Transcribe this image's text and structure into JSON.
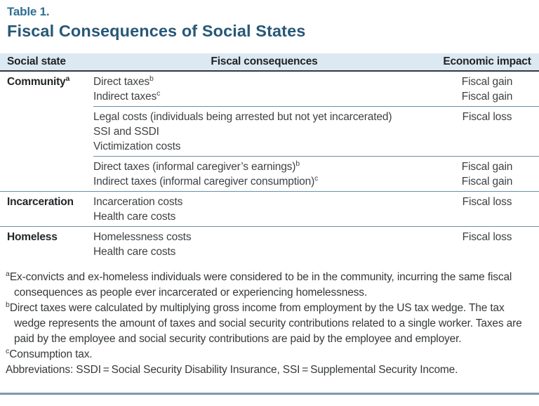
{
  "figure": {
    "eyebrow": "Table 1.",
    "title": "Fiscal Consequences of Social States"
  },
  "table": {
    "headers": {
      "state": "Social state",
      "consequences": "Fiscal consequences",
      "impact": "Economic impact"
    },
    "sections": [
      {
        "state": "Community",
        "state_sup": "a",
        "groups": [
          {
            "items": [
              {
                "text": "Direct taxes",
                "sup": "b",
                "impact": "Fiscal gain"
              },
              {
                "text": "Indirect taxes",
                "sup": "c",
                "impact": "Fiscal gain"
              }
            ]
          },
          {
            "items": [
              {
                "text": "Legal costs (individuals being arrested but not yet incarcerated)",
                "impact": "Fiscal loss"
              },
              {
                "text": "SSI and SSDI"
              },
              {
                "text": "Victimization costs"
              }
            ]
          },
          {
            "items": [
              {
                "text": "Direct taxes (informal caregiver’s earnings)",
                "sup": "b",
                "impact": "Fiscal gain"
              },
              {
                "text": "Indirect taxes (informal caregiver consumption)",
                "sup": "c",
                "impact": "Fiscal gain"
              }
            ]
          }
        ]
      },
      {
        "state": "Incarceration",
        "groups": [
          {
            "items": [
              {
                "text": "Incarceration costs",
                "impact": "Fiscal loss"
              },
              {
                "text": "Health care costs"
              }
            ]
          }
        ]
      },
      {
        "state": "Homeless",
        "groups": [
          {
            "items": [
              {
                "text": "Homelessness costs",
                "impact": "Fiscal loss"
              },
              {
                "text": "Health care costs"
              }
            ]
          }
        ]
      }
    ]
  },
  "footnotes": [
    {
      "marker": "a",
      "text": "Ex-convicts and ex-homeless individuals were considered to be in the community, incurring the same fiscal consequences as people ever incarcerated or experiencing homelessness."
    },
    {
      "marker": "b",
      "text": "Direct taxes were calculated by multiplying gross income from employment by the US tax wedge. The tax wedge represents the amount of taxes and social security contributions related to a single worker. Taxes are paid by the employee and social security contributions are paid by the employee and employer."
    },
    {
      "marker": "c",
      "text": "Consumption tax."
    },
    {
      "marker": "",
      "text": "Abbreviations: SSDI = Social Security Disability Insurance, SSI = Supplemental Security Income."
    }
  ],
  "colors": {
    "eyebrow_color": "#2e6f93",
    "title_color": "#275877",
    "header_bg": "#dce9f3",
    "header_rule": "#33393f",
    "separator": "#6b8fa8",
    "rule_blue": "#7e98ab"
  }
}
